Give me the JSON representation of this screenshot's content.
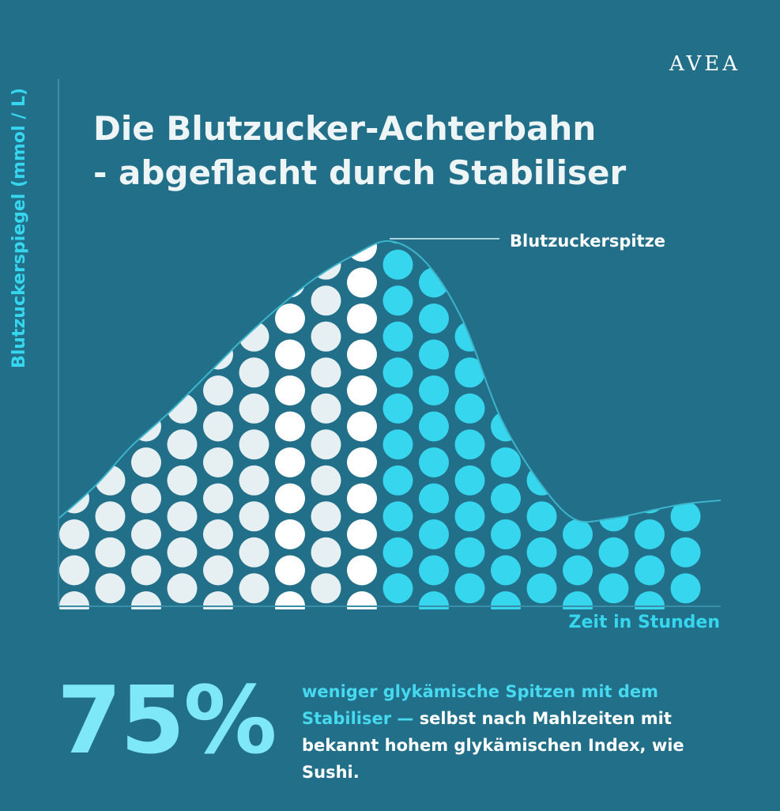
{
  "brand": "AVEA",
  "title_line1": "Die Blutzucker-Achterbahn",
  "title_line2": "- abgeflacht durch Stabiliser",
  "stat": {
    "value": "75%",
    "highlight": "weniger glykämische Spitzen mit dem Stabiliser —",
    "text": "selbst nach Mahlzeiten mit bekannt hohem glykämischen Index, wie Sushi."
  },
  "colors": {
    "background": "#226f89",
    "dot_before": "#e6eff2",
    "dot_peak": "#ffffff",
    "dot_after": "#36d6ee",
    "accent": "#36d6ee"
  },
  "chart_data": {
    "type": "area",
    "xlabel": "Zeit in Stunden",
    "ylabel": "Blutzuckerspiegel (mmol / L)",
    "annotation": "Blutzuckerspitze",
    "grid": false,
    "legend": "none",
    "ylim": [
      0,
      100
    ],
    "x": [
      0,
      1,
      2,
      3,
      4,
      5,
      6,
      7,
      8,
      9,
      10,
      11,
      12,
      13,
      14,
      15,
      16,
      17,
      18
    ],
    "y": [
      24,
      33,
      44,
      53,
      63,
      73,
      82,
      90,
      96,
      100,
      94,
      78,
      52,
      35,
      24,
      24,
      26,
      28,
      29
    ],
    "peak_index": 9
  }
}
